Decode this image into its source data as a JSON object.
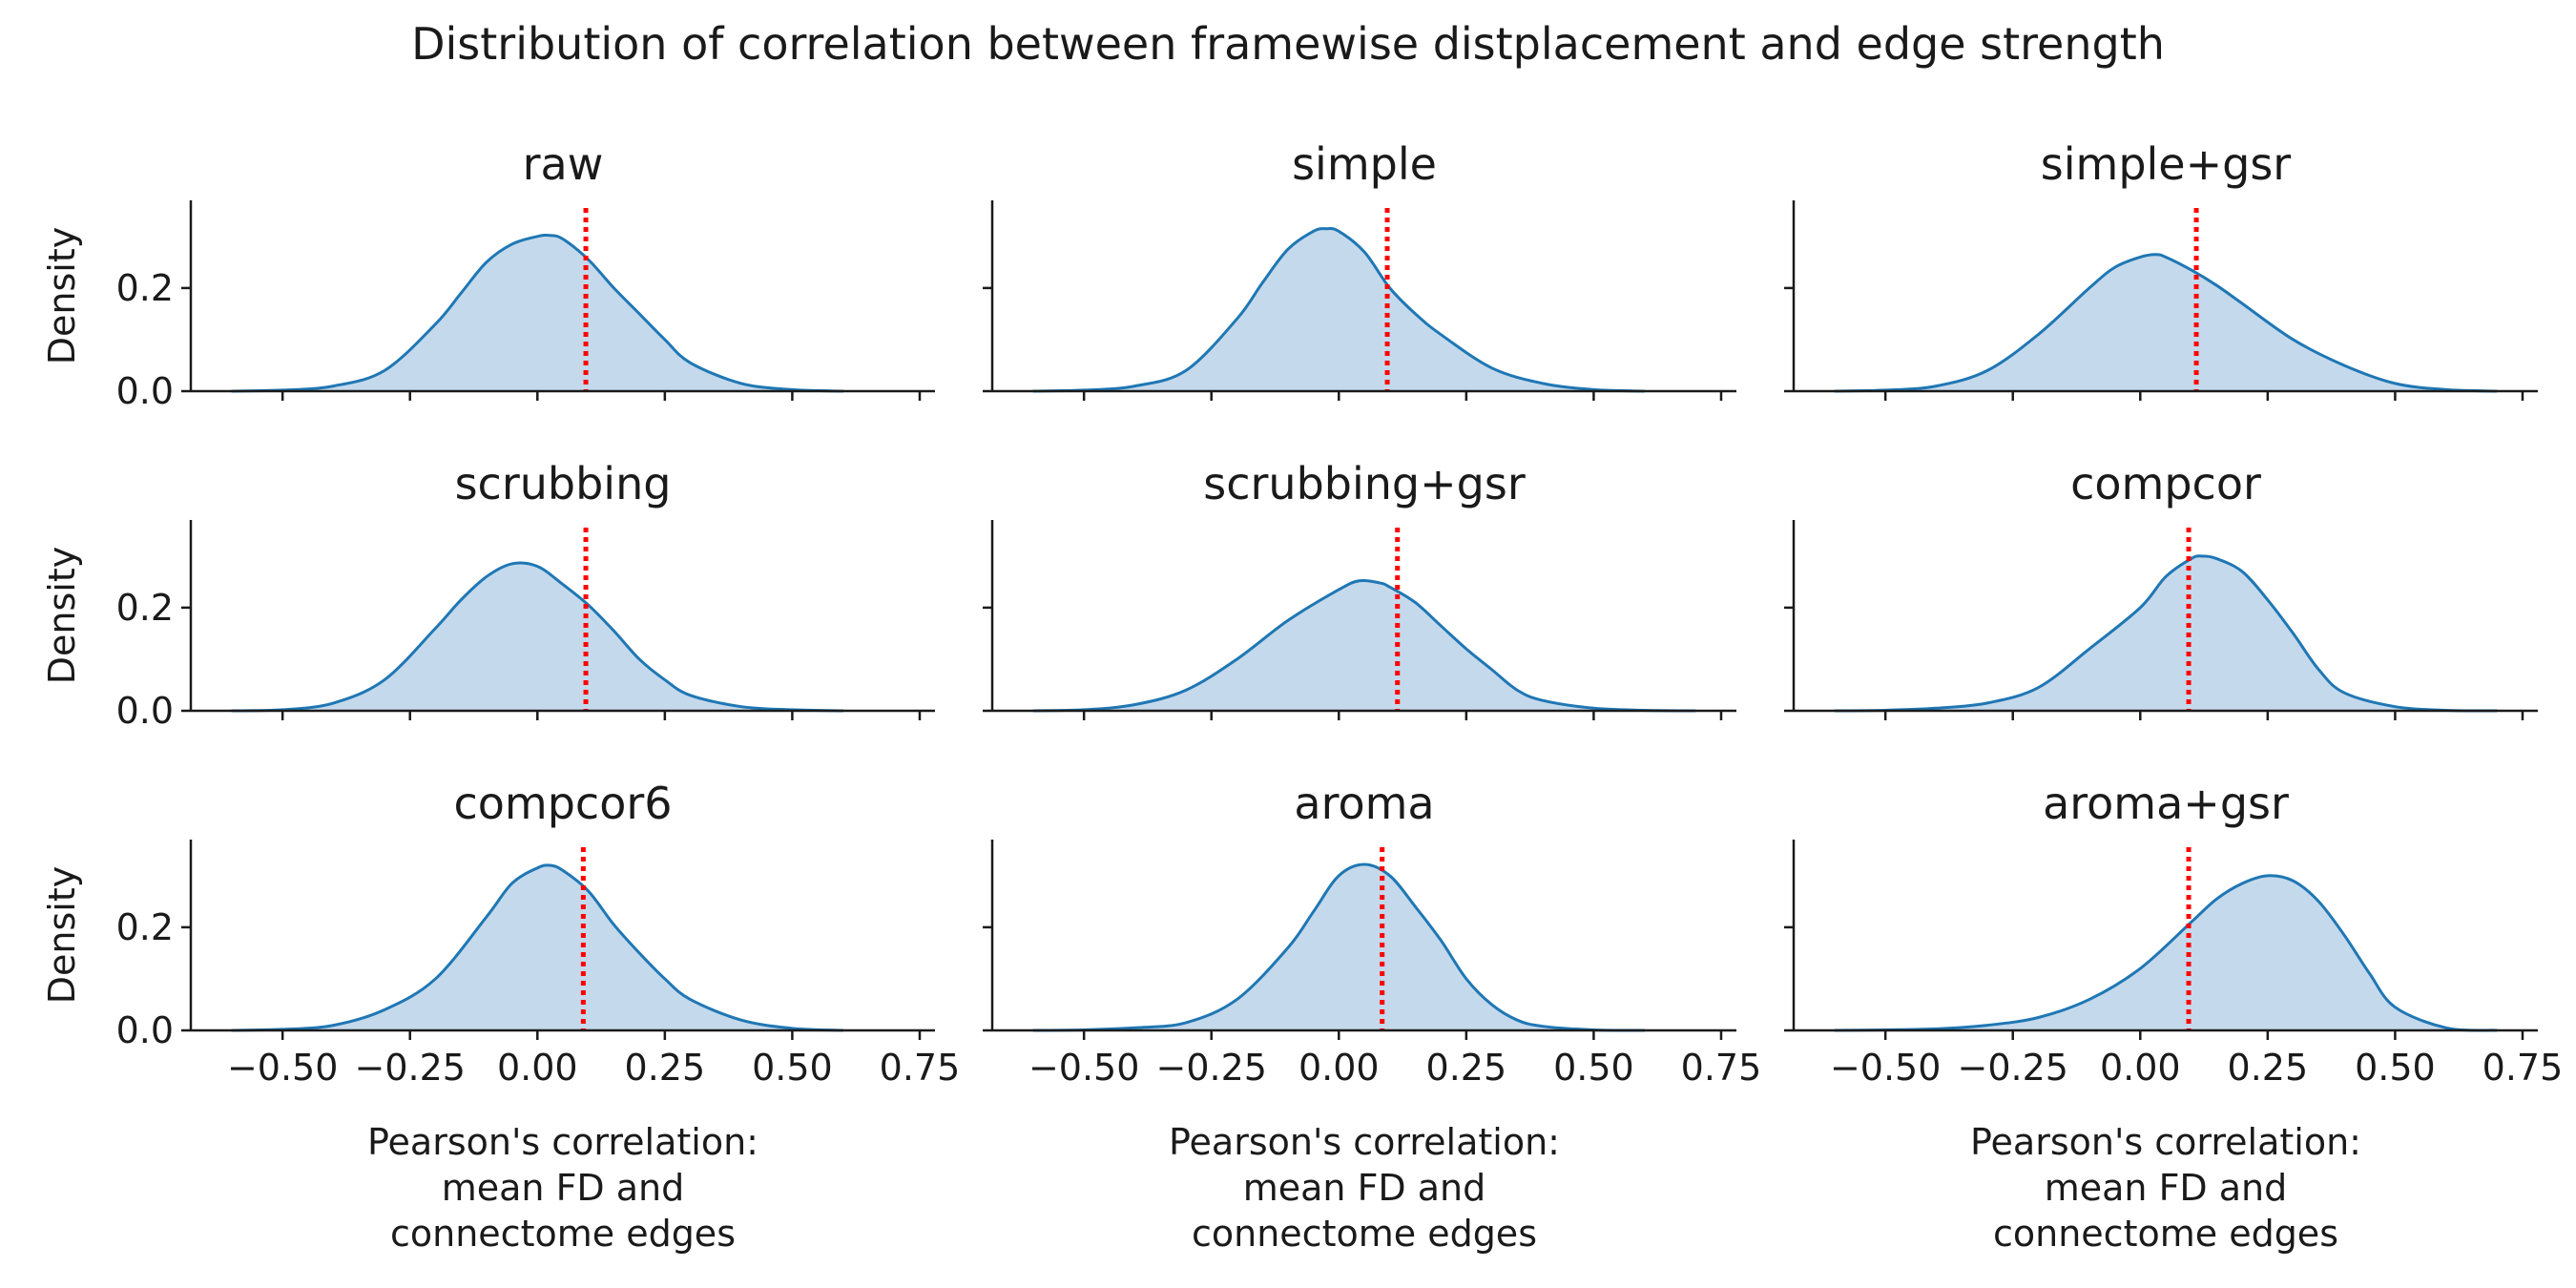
{
  "chart_data": {
    "type": "area",
    "title": "Distribution of correlation between framewise distplacement and edge strength",
    "xlabel_lines": [
      "Pearson's correlation:",
      "mean FD and",
      "connectome edges"
    ],
    "ylabel": "Density",
    "xlim": [
      -0.68,
      0.78
    ],
    "ylim": [
      0,
      0.37
    ],
    "x_ticks": [
      -0.5,
      -0.25,
      0.0,
      0.25,
      0.5,
      0.75
    ],
    "x_tick_labels": [
      "−0.50",
      "−0.25",
      "0.00",
      "0.25",
      "0.50",
      "0.75"
    ],
    "y_ticks": [
      0.0,
      0.2
    ],
    "y_tick_labels": [
      "0.0",
      "0.2"
    ],
    "line_color": "#1f77b4",
    "fill_color": "#c5d9ec",
    "threshold_color": "#ff0000",
    "panels": [
      {
        "name": "raw",
        "threshold": 0.095,
        "x": [
          -0.6,
          -0.5,
          -0.4,
          -0.3,
          -0.2,
          -0.15,
          -0.1,
          -0.05,
          0.0,
          0.025,
          0.05,
          0.1,
          0.15,
          0.2,
          0.25,
          0.3,
          0.4,
          0.5,
          0.6
        ],
        "y": [
          0.0,
          0.002,
          0.01,
          0.04,
          0.13,
          0.19,
          0.25,
          0.285,
          0.3,
          0.302,
          0.295,
          0.255,
          0.2,
          0.15,
          0.1,
          0.055,
          0.015,
          0.003,
          0.0
        ]
      },
      {
        "name": "simple",
        "threshold": 0.095,
        "x": [
          -0.6,
          -0.5,
          -0.4,
          -0.3,
          -0.2,
          -0.15,
          -0.1,
          -0.05,
          -0.025,
          0.0,
          0.05,
          0.1,
          0.15,
          0.2,
          0.3,
          0.4,
          0.5,
          0.6
        ],
        "y": [
          0.0,
          0.002,
          0.01,
          0.04,
          0.14,
          0.21,
          0.275,
          0.31,
          0.315,
          0.31,
          0.27,
          0.2,
          0.15,
          0.11,
          0.045,
          0.015,
          0.003,
          0.0
        ]
      },
      {
        "name": "simple+gsr",
        "threshold": 0.11,
        "x": [
          -0.6,
          -0.5,
          -0.4,
          -0.3,
          -0.2,
          -0.1,
          -0.05,
          0.0,
          0.03,
          0.05,
          0.1,
          0.15,
          0.2,
          0.3,
          0.4,
          0.5,
          0.6,
          0.7
        ],
        "y": [
          0.0,
          0.002,
          0.01,
          0.04,
          0.11,
          0.2,
          0.24,
          0.26,
          0.265,
          0.26,
          0.235,
          0.205,
          0.17,
          0.1,
          0.05,
          0.015,
          0.003,
          0.0
        ]
      },
      {
        "name": "scrubbing",
        "threshold": 0.095,
        "x": [
          -0.6,
          -0.5,
          -0.4,
          -0.3,
          -0.2,
          -0.15,
          -0.1,
          -0.05,
          0.0,
          0.05,
          0.1,
          0.15,
          0.2,
          0.25,
          0.3,
          0.4,
          0.5,
          0.6
        ],
        "y": [
          0.0,
          0.002,
          0.015,
          0.06,
          0.16,
          0.215,
          0.26,
          0.285,
          0.28,
          0.245,
          0.205,
          0.155,
          0.1,
          0.06,
          0.03,
          0.008,
          0.002,
          0.0
        ]
      },
      {
        "name": "scrubbing+gsr",
        "threshold": 0.115,
        "x": [
          -0.6,
          -0.5,
          -0.4,
          -0.3,
          -0.2,
          -0.1,
          0.0,
          0.04,
          0.08,
          0.1,
          0.15,
          0.2,
          0.25,
          0.3,
          0.35,
          0.4,
          0.5,
          0.6,
          0.7
        ],
        "y": [
          0.0,
          0.002,
          0.012,
          0.04,
          0.1,
          0.175,
          0.235,
          0.252,
          0.248,
          0.24,
          0.21,
          0.165,
          0.12,
          0.08,
          0.04,
          0.02,
          0.005,
          0.001,
          0.0
        ]
      },
      {
        "name": "compcor",
        "threshold": 0.095,
        "x": [
          -0.6,
          -0.5,
          -0.4,
          -0.3,
          -0.2,
          -0.1,
          0.0,
          0.05,
          0.1,
          0.12,
          0.15,
          0.2,
          0.25,
          0.3,
          0.35,
          0.4,
          0.5,
          0.6,
          0.7
        ],
        "y": [
          0.0,
          0.001,
          0.005,
          0.015,
          0.045,
          0.12,
          0.2,
          0.26,
          0.295,
          0.3,
          0.295,
          0.27,
          0.215,
          0.15,
          0.08,
          0.035,
          0.008,
          0.001,
          0.0
        ]
      },
      {
        "name": "compcor6",
        "threshold": 0.09,
        "x": [
          -0.6,
          -0.5,
          -0.4,
          -0.3,
          -0.2,
          -0.1,
          -0.05,
          0.0,
          0.025,
          0.05,
          0.1,
          0.15,
          0.2,
          0.25,
          0.3,
          0.4,
          0.5,
          0.6
        ],
        "y": [
          0.0,
          0.002,
          0.01,
          0.04,
          0.1,
          0.22,
          0.285,
          0.315,
          0.32,
          0.31,
          0.27,
          0.205,
          0.15,
          0.1,
          0.06,
          0.02,
          0.004,
          0.0
        ]
      },
      {
        "name": "aroma",
        "threshold": 0.085,
        "x": [
          -0.6,
          -0.5,
          -0.4,
          -0.3,
          -0.2,
          -0.1,
          -0.05,
          0.0,
          0.05,
          0.1,
          0.15,
          0.2,
          0.25,
          0.3,
          0.35,
          0.4,
          0.5,
          0.6
        ],
        "y": [
          0.0,
          0.001,
          0.005,
          0.015,
          0.06,
          0.16,
          0.23,
          0.3,
          0.322,
          0.3,
          0.24,
          0.175,
          0.1,
          0.05,
          0.02,
          0.008,
          0.001,
          0.0
        ]
      },
      {
        "name": "aroma+gsr",
        "threshold": 0.095,
        "x": [
          -0.6,
          -0.5,
          -0.4,
          -0.3,
          -0.2,
          -0.1,
          0.0,
          0.1,
          0.15,
          0.2,
          0.25,
          0.3,
          0.35,
          0.4,
          0.45,
          0.5,
          0.6,
          0.7
        ],
        "y": [
          0.0,
          0.001,
          0.003,
          0.01,
          0.025,
          0.06,
          0.12,
          0.21,
          0.255,
          0.285,
          0.3,
          0.29,
          0.25,
          0.185,
          0.11,
          0.045,
          0.005,
          0.0
        ]
      }
    ]
  }
}
